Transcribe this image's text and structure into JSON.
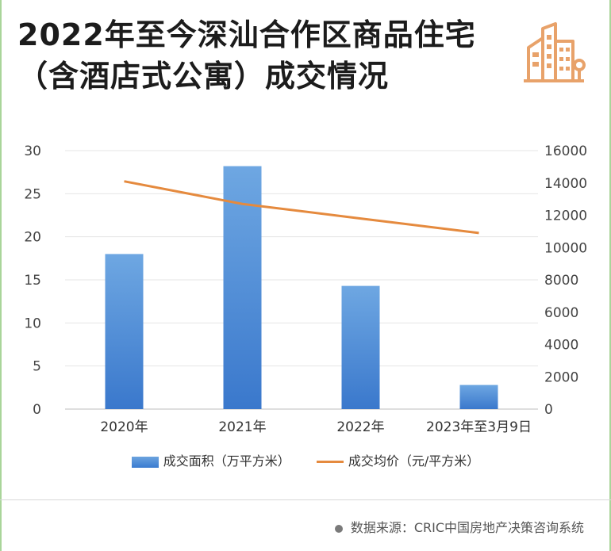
{
  "title_line1": "2022年至今深汕合作区商品住宅",
  "title_line2": "（含酒店式公寓）成交情况",
  "logo_icon": "city-buildings-icon",
  "source": "数据来源：CRIC中国房地产决策咨询系统",
  "colors": {
    "bar": "#4a8ad6",
    "line": "#e58a3e",
    "logo": "#e8a26a"
  },
  "chart_data": {
    "type": "bar",
    "categories": [
      "2020年",
      "2021年",
      "2022年",
      "2023年至3月9日"
    ],
    "series": [
      {
        "name": "成交面积（万平方米）",
        "type": "bar",
        "axis": "left",
        "values": [
          18.0,
          28.2,
          14.3,
          2.8
        ]
      },
      {
        "name": "成交均价（元/平方米）",
        "type": "line",
        "axis": "right",
        "values": [
          14100,
          12700,
          11800,
          10900
        ]
      }
    ],
    "ylim_left": [
      0,
      30
    ],
    "yticks_left": [
      0,
      5,
      10,
      15,
      20,
      25,
      30
    ],
    "ylim_right": [
      0,
      16000
    ],
    "yticks_right": [
      0,
      2000,
      4000,
      6000,
      8000,
      10000,
      12000,
      14000,
      16000
    ],
    "grid": true,
    "legend_position": "bottom"
  }
}
